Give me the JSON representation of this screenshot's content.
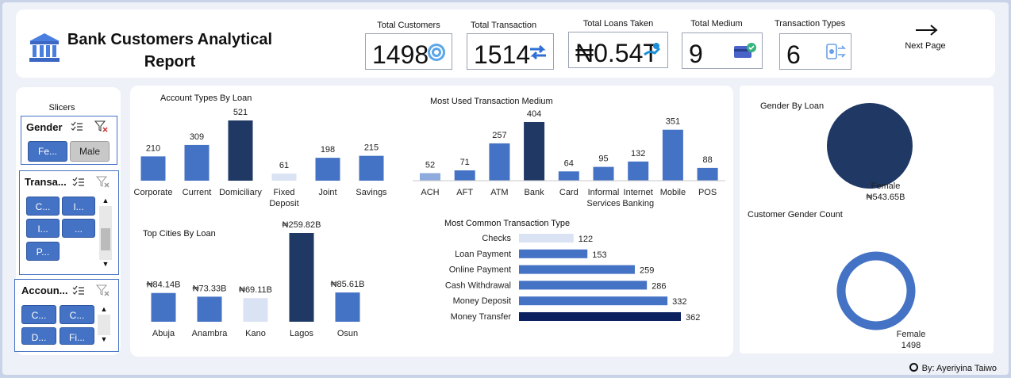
{
  "header": {
    "title_line1": "Bank Customers Analytical",
    "title_line2": "Report",
    "next_label": "Next Page",
    "kpis": [
      {
        "label": "Total Customers",
        "value": "1498",
        "icon": "target-icon"
      },
      {
        "label": "Total Transaction",
        "value": "1514",
        "icon": "transfer-arrows-icon"
      },
      {
        "label": "Total Loans Taken",
        "value": "₦0.54T",
        "icon": "loan-hand-icon"
      },
      {
        "label": "Total Medium",
        "value": "9",
        "icon": "card-check-icon"
      },
      {
        "label": "Transaction Types",
        "value": "6",
        "icon": "transaction-types-icon"
      }
    ]
  },
  "slicers": {
    "title": "Slicers",
    "gender": {
      "label": "Gender",
      "items": [
        "Fe...",
        "Male"
      ]
    },
    "transaction": {
      "label": "Transa...",
      "items": [
        "C...",
        "I...",
        "I...",
        "...",
        "P..."
      ]
    },
    "account": {
      "label": "Accoun...",
      "items": [
        "C...",
        "C...",
        "D...",
        "Fi..."
      ]
    }
  },
  "colors": {
    "dark": "#1f3864",
    "mid": "#4472c4",
    "light": "#8faadc",
    "pale": "#dae3f3",
    "navy": "#0c2160"
  },
  "chart_data": [
    {
      "type": "bar",
      "title": "Account Types By Loan",
      "categories": [
        "Corporate",
        "Current",
        "Domiciliary",
        "Fixed Deposit",
        "Joint",
        "Savings"
      ],
      "values": [
        210,
        309,
        521,
        61,
        198,
        215
      ]
    },
    {
      "type": "bar",
      "title": "Most Used Transaction Medium",
      "categories": [
        "ACH",
        "AFT",
        "ATM",
        "Bank",
        "Card",
        "Informal Services",
        "Internet Banking",
        "Mobile",
        "POS"
      ],
      "values": [
        52,
        71,
        257,
        404,
        64,
        95,
        132,
        351,
        88
      ]
    },
    {
      "type": "bar",
      "title": "Top Cities By Loan",
      "categories": [
        "Abuja",
        "Anambra",
        "Kano",
        "Lagos",
        "Osun"
      ],
      "values": [
        84.14,
        73.33,
        69.11,
        259.82,
        85.61
      ],
      "labels": [
        "₦84.14B",
        "₦73.33B",
        "₦69.11B",
        "₦259.82B",
        "₦85.61B"
      ]
    },
    {
      "type": "bar",
      "orientation": "horizontal",
      "title": "Most Common Transaction Type",
      "categories": [
        "Checks",
        "Loan Payment",
        "Online Payment",
        "Cash Withdrawal",
        "Money Deposit",
        "Money Transfer"
      ],
      "values": [
        122,
        153,
        259,
        286,
        332,
        362
      ]
    },
    {
      "type": "pie",
      "title": "Gender By Loan",
      "categories": [
        "Female"
      ],
      "values": [
        543.65
      ],
      "labels": [
        "₦543.65B"
      ]
    },
    {
      "type": "pie",
      "title": "Customer Gender Count",
      "categories": [
        "Female"
      ],
      "values": [
        1498
      ],
      "labels": [
        "1498"
      ]
    }
  ],
  "footer": {
    "credit": "By: Ayeriyina Taiwo"
  }
}
